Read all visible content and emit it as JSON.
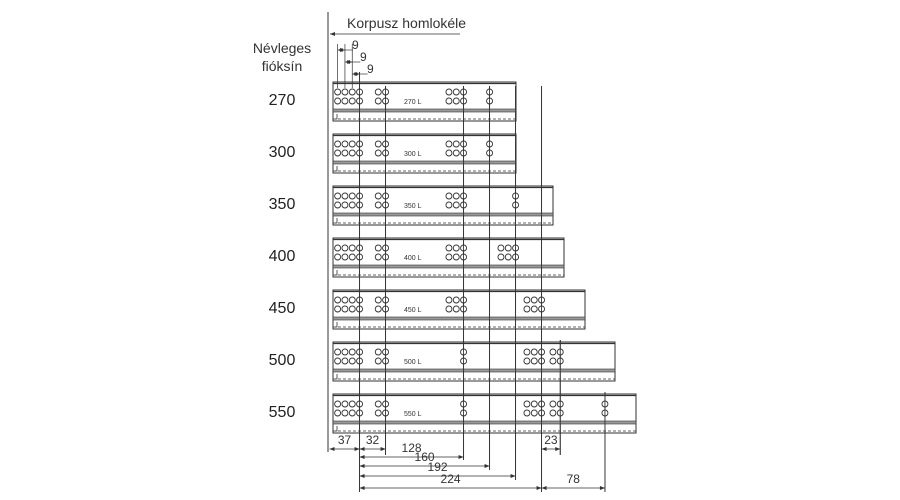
{
  "header": {
    "front_label": "Korpusz homlokéle",
    "nominal_label_line1": "Névleges",
    "nominal_label_line2": "fióksín"
  },
  "top_dims": [
    "9",
    "9",
    "9"
  ],
  "rails": [
    {
      "size": "270",
      "inner_label": "270 L",
      "holes_mm": [
        10,
        19,
        28,
        37,
        60,
        69,
        147,
        156,
        165,
        197
      ]
    },
    {
      "size": "300",
      "inner_label": "300 L",
      "holes_mm": [
        10,
        19,
        28,
        37,
        60,
        69,
        147,
        156,
        165,
        197
      ]
    },
    {
      "size": "350",
      "inner_label": "350 L",
      "holes_mm": [
        10,
        19,
        28,
        37,
        60,
        69,
        147,
        156,
        165,
        229
      ]
    },
    {
      "size": "400",
      "inner_label": "400 L",
      "holes_mm": [
        10,
        19,
        28,
        37,
        60,
        69,
        147,
        156,
        165,
        211,
        220,
        229
      ]
    },
    {
      "size": "450",
      "inner_label": "450 L",
      "holes_mm": [
        10,
        19,
        28,
        37,
        60,
        69,
        147,
        156,
        165,
        243,
        252,
        261
      ]
    },
    {
      "size": "500",
      "inner_label": "500 L",
      "holes_mm": [
        10,
        19,
        28,
        37,
        60,
        69,
        165,
        243,
        252,
        261,
        275,
        284
      ]
    },
    {
      "size": "550",
      "inner_label": "550 L",
      "holes_mm": [
        10,
        19,
        28,
        37,
        60,
        69,
        165,
        243,
        252,
        261,
        275,
        284,
        339
      ]
    }
  ],
  "bottom_dims": [
    {
      "label": "37",
      "from_mm": 0,
      "to_mm": 37
    },
    {
      "label": "32",
      "from_mm": 37,
      "to_mm": 69
    },
    {
      "label": "128",
      "from_mm": 37,
      "to_mm": 165
    },
    {
      "label": "160",
      "from_mm": 37,
      "to_mm": 197
    },
    {
      "label": "192",
      "from_mm": 37,
      "to_mm": 229
    },
    {
      "label": "224",
      "from_mm": 37,
      "to_mm": 261
    },
    {
      "label": "23",
      "from_mm": 261,
      "to_mm": 284
    },
    {
      "label": "78",
      "from_mm": 261,
      "to_mm": 339
    }
  ],
  "colors": {
    "line": "#333333",
    "rail_band": "#999999"
  }
}
